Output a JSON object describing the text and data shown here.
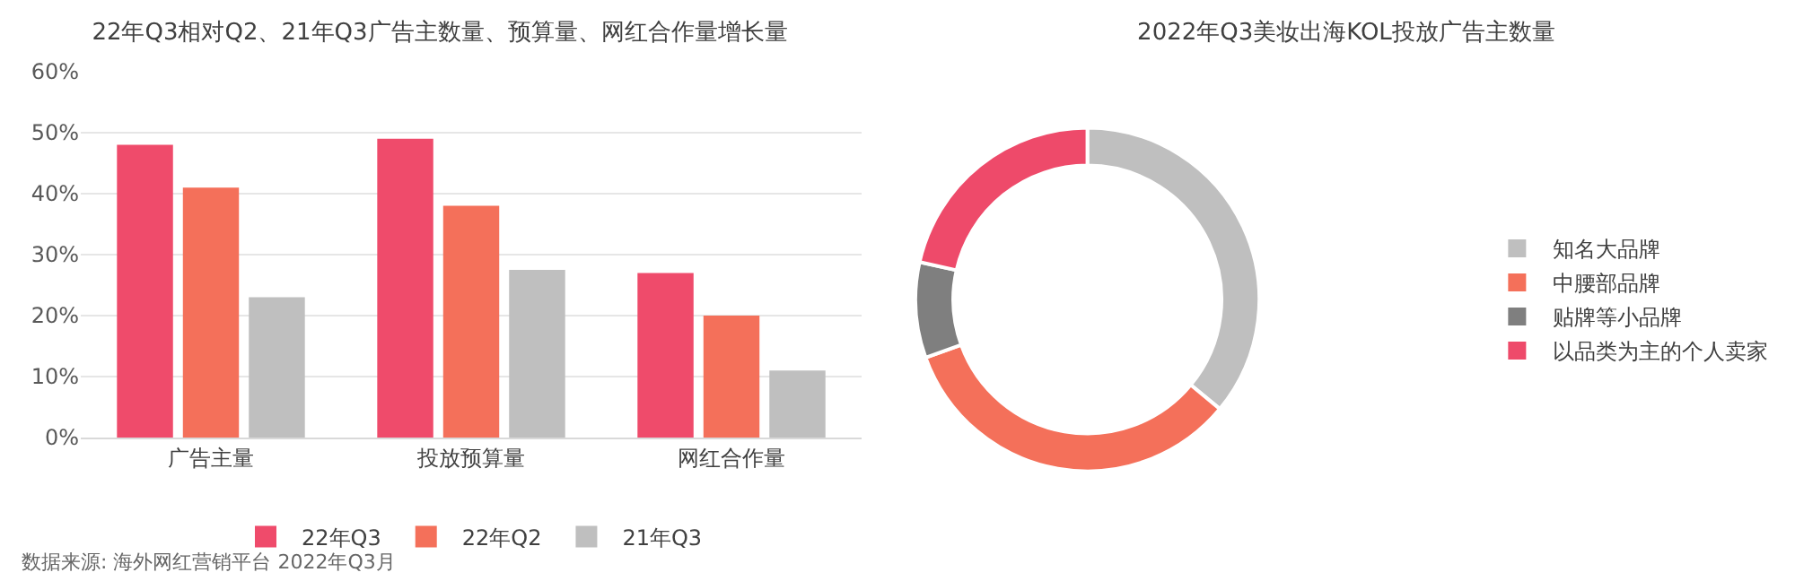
{
  "chart_data": [
    {
      "type": "bar",
      "title": "22年Q3相对Q2、21年Q3广告主数量、预算量、网红合作量增长量",
      "categories": [
        "广告主量",
        "投放预算量",
        "网红合作量"
      ],
      "series": [
        {
          "name": "22年Q3",
          "color": "#ef4b6b",
          "values": [
            48,
            49,
            27
          ]
        },
        {
          "name": "22年Q2",
          "color": "#f4705a",
          "values": [
            41,
            38,
            20
          ]
        },
        {
          "name": "21年Q3",
          "color": "#bfbfbf",
          "values": [
            23,
            27.5,
            11
          ]
        }
      ],
      "ylim": [
        0,
        60
      ],
      "yticks": [
        {
          "value": 0,
          "label": "0%"
        },
        {
          "value": 10,
          "label": "10%"
        },
        {
          "value": 20,
          "label": "20%"
        },
        {
          "value": 30,
          "label": "30%"
        },
        {
          "value": 40,
          "label": "40%"
        },
        {
          "value": 50,
          "label": "50%"
        },
        {
          "value": 60,
          "label": "60%"
        }
      ],
      "grid": "y",
      "legend": "bottom",
      "annotations": [
        "数据来源: 海外网红营销平台 2022年Q3月"
      ]
    },
    {
      "type": "donut",
      "title": "2022年Q3美妆出海KOL投放广告主数量",
      "categories": [
        "知名大品牌",
        "中腰部品牌",
        "贴牌等小品牌",
        "以品类为主的个人卖家"
      ],
      "values": [
        36,
        33.5,
        9,
        21.5
      ],
      "colors": [
        "#bfbfbf",
        "#f4705a",
        "#7f7f7f",
        "#ee4a6a"
      ],
      "legend": "right"
    }
  ]
}
